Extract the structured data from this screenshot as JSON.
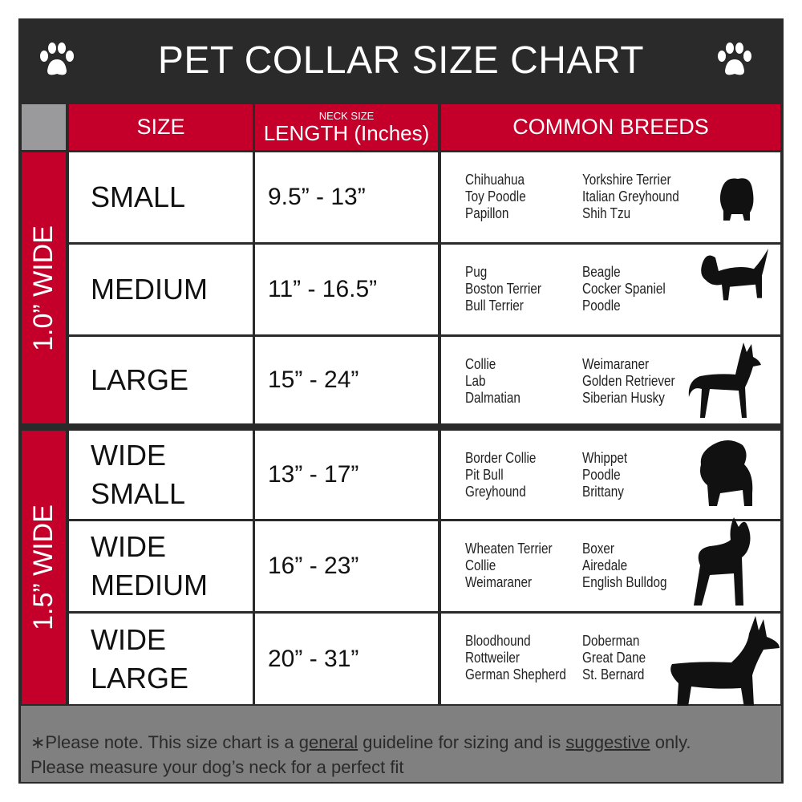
{
  "title": "PET COLLAR SIZE CHART",
  "header": {
    "size": "SIZE",
    "neck_size": "NECK SIZE",
    "length": "LENGTH (Inches)",
    "breeds": "COMMON BREEDS"
  },
  "groups": [
    {
      "label": "1.0” WIDE"
    },
    {
      "label": "1.5” WIDE"
    }
  ],
  "rows": [
    {
      "size": "SMALL",
      "length": "9.5” - 13”",
      "breeds_a": [
        "Chihuahua",
        "Toy Poodle",
        "Papillon"
      ],
      "breeds_b": [
        "Yorkshire Terrier",
        "Italian Greyhound",
        "Shih Tzu"
      ],
      "icon": "small-dog-silhouette-icon"
    },
    {
      "size": "MEDIUM",
      "length": "11” - 16.5”",
      "breeds_a": [
        "Pug",
        "Boston Terrier",
        "Bull Terrier"
      ],
      "breeds_b": [
        "Beagle",
        "Cocker Spaniel",
        "Poodle"
      ],
      "icon": "medium-dog-silhouette-icon"
    },
    {
      "size": "LARGE",
      "length": "15” - 24”",
      "breeds_a": [
        "Collie",
        "Lab",
        "Dalmatian"
      ],
      "breeds_b": [
        "Weimaraner",
        "Golden Retriever",
        "Siberian Husky"
      ],
      "icon": "large-dog-silhouette-icon"
    },
    {
      "size": "WIDE SMALL",
      "length": "13” - 17”",
      "breeds_a": [
        "Border Collie",
        "Pit Bull",
        "Greyhound"
      ],
      "breeds_b": [
        "Whippet",
        "Poodle",
        "Brittany"
      ],
      "icon": "bulldog-silhouette-icon"
    },
    {
      "size": "WIDE MEDIUM",
      "length": "16” - 23”",
      "breeds_a": [
        "Wheaten Terrier",
        "Collie",
        "Weimaraner"
      ],
      "breeds_b": [
        "Boxer",
        "Airedale",
        "English Bulldog"
      ],
      "icon": "pitbull-silhouette-icon"
    },
    {
      "size": "WIDE LARGE",
      "length": "20” - 31”",
      "breeds_a": [
        "Bloodhound",
        "Rottweiler",
        "German Shepherd"
      ],
      "breeds_b": [
        "Doberman",
        "Great Dane",
        "St. Bernard"
      ],
      "icon": "doberman-silhouette-icon"
    }
  ],
  "footer": {
    "p1": "∗Please note. This size chart is a ",
    "u1": "general",
    "p2": " guideline for sizing and is ",
    "u2": "suggestive",
    "p3": " only.",
    "line2": "Please measure your dog’s neck for a perfect fit"
  },
  "colors": {
    "red": "#c4002a",
    "dark": "#2a2a2a",
    "gray": "#808081"
  }
}
